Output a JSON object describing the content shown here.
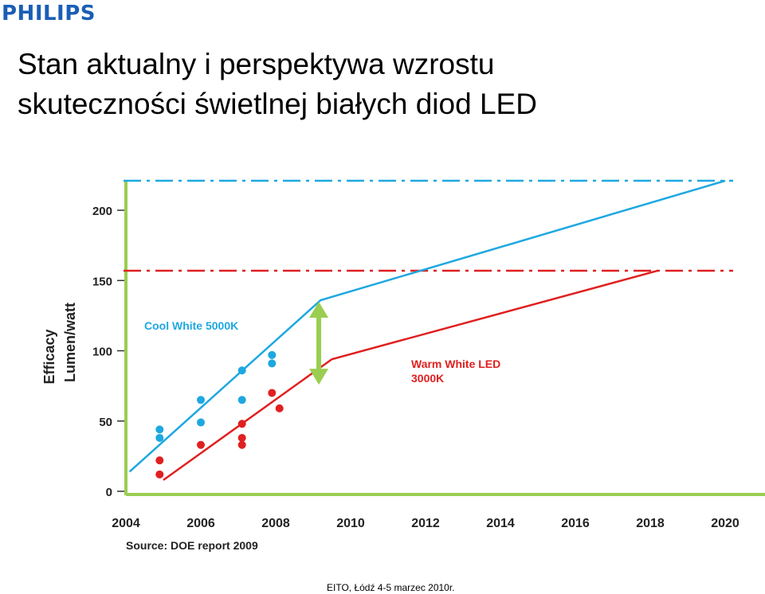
{
  "logo": {
    "text": "PHILIPS",
    "color": "#1a5fb4"
  },
  "title": {
    "line1": "Stan aktualny i perspektywa wzrostu",
    "line2": "skuteczności świetlnej białych diod LED"
  },
  "footer": "EITO, Łódź 4-5 marzec 2010r.",
  "chart_data": {
    "type": "line",
    "ylabel_line1": "Efficacy",
    "ylabel_line2": "Lumen/watt",
    "source": "Source: DOE report 2009",
    "ylim": [
      0,
      225
    ],
    "xlim": [
      2004,
      2020.5
    ],
    "y_ticks": [
      0,
      50,
      100,
      150,
      200
    ],
    "x_ticks": [
      2004,
      2006,
      2008,
      2010,
      2012,
      2014,
      2016,
      2018,
      2020
    ],
    "series": [
      {
        "name": "Cool White 5000K",
        "color": "#1ea8e0",
        "line": [
          [
            2004.1,
            14
          ],
          [
            2009.2,
            136
          ],
          [
            2020,
            221
          ]
        ],
        "target": 221,
        "points": [
          [
            2004.9,
            44
          ],
          [
            2004.9,
            38
          ],
          [
            2006,
            65
          ],
          [
            2006,
            49
          ],
          [
            2007.1,
            86
          ],
          [
            2007.1,
            65
          ],
          [
            2007.9,
            97
          ],
          [
            2007.9,
            91
          ]
        ]
      },
      {
        "name": "Warm White LED 3000K",
        "color": "#e02020",
        "line": [
          [
            2005,
            8
          ],
          [
            2009.5,
            94
          ],
          [
            2018.2,
            157
          ]
        ],
        "target": 157,
        "points": [
          [
            2004.9,
            22
          ],
          [
            2004.9,
            12
          ],
          [
            2006,
            33
          ],
          [
            2007.1,
            48
          ],
          [
            2007.1,
            38
          ],
          [
            2007.1,
            33
          ],
          [
            2007.9,
            70
          ],
          [
            2008.1,
            59
          ]
        ]
      }
    ],
    "colors": {
      "axis_green": "#9acd50",
      "arrow_green": "#9acd50"
    }
  }
}
